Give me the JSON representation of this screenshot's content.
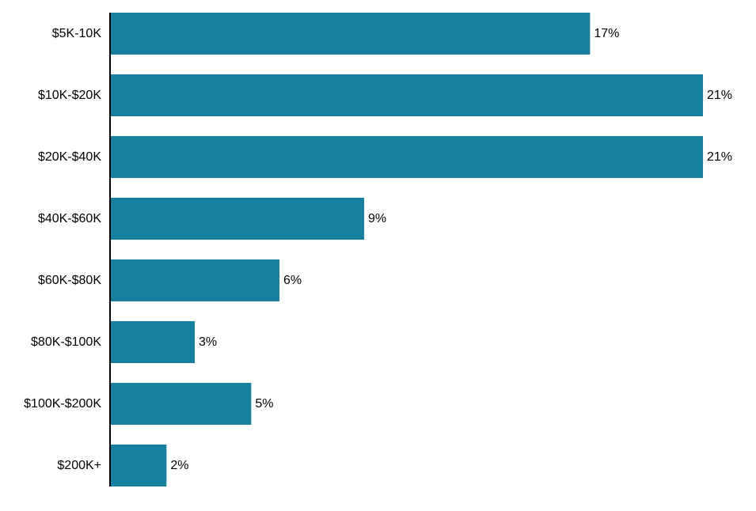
{
  "chart_data": {
    "type": "bar",
    "orientation": "horizontal",
    "categories": [
      "$5K-10K",
      "$10K-$20K",
      "$20K-$40K",
      "$40K-$60K",
      "$60K-$80K",
      "$80K-$100K",
      "$100K-$200K",
      "$200K+"
    ],
    "values": [
      17,
      21,
      21,
      9,
      6,
      3,
      5,
      2
    ],
    "data_labels": [
      "17%",
      "21%",
      "21%",
      "9%",
      "6%",
      "3%",
      "5%",
      "2%"
    ],
    "title": "",
    "xlabel": "",
    "ylabel": "",
    "xlim": [
      0,
      21
    ],
    "grid": false,
    "legend": "none"
  },
  "colors": {
    "bar": "#1580a0",
    "axis": "#000000",
    "text": "#000000"
  }
}
